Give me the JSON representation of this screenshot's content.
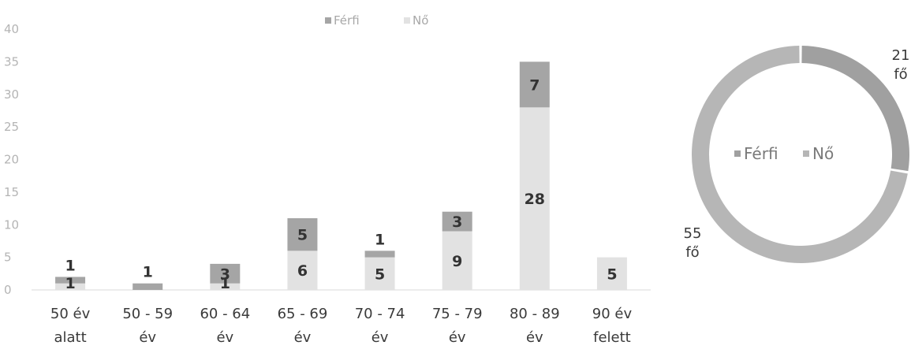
{
  "chart_data": [
    {
      "type": "bar",
      "stacked": true,
      "categories": [
        [
          "50 év",
          "alatt"
        ],
        [
          "50 - 59",
          "év"
        ],
        [
          "60 - 64",
          "év"
        ],
        [
          "65 - 69",
          "év"
        ],
        [
          "70 - 74",
          "év"
        ],
        [
          "75 - 79",
          "év"
        ],
        [
          "80 - 89",
          "év"
        ],
        [
          "90 év",
          "felett"
        ]
      ],
      "series": [
        {
          "name": "Nő",
          "values": [
            1,
            0,
            1,
            6,
            5,
            9,
            28,
            5
          ],
          "color": "#e2e2e2",
          "labels": [
            "1",
            "",
            "1",
            "6",
            "5",
            "9",
            "28",
            "5"
          ]
        },
        {
          "name": "Férfi",
          "values": [
            1,
            1,
            3,
            5,
            1,
            3,
            7,
            0
          ],
          "color": "#a5a5a5",
          "labels": [
            "1",
            "1",
            "3",
            "5",
            "1",
            "3",
            "7",
            ""
          ]
        }
      ],
      "ylim": [
        0,
        40
      ],
      "yticks": [
        "0",
        "5",
        "10",
        "15",
        "20",
        "25",
        "30",
        "35",
        "40"
      ],
      "legend_position": "top",
      "grid": false
    },
    {
      "type": "pie",
      "donut": true,
      "slices": [
        {
          "name": "Férfi",
          "value": 21,
          "label": [
            "21",
            "fő"
          ],
          "color": "#a0a0a0"
        },
        {
          "name": "Nő",
          "value": 55,
          "label": [
            "55",
            "fő"
          ],
          "color": "#b6b6b6"
        }
      ],
      "legend_position": "center"
    }
  ]
}
